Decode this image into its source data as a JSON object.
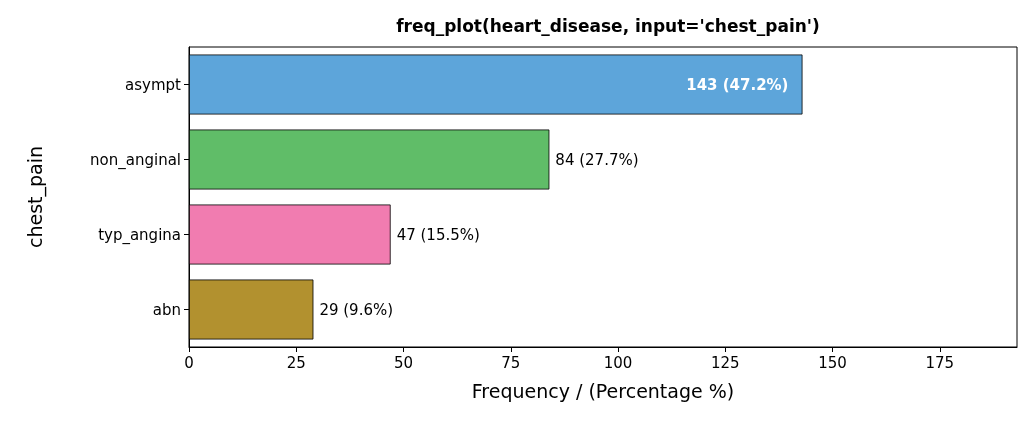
{
  "chart_data": {
    "type": "bar",
    "orientation": "horizontal",
    "title": "freq_plot(heart_disease, input='chest_pain')",
    "xlabel": "Frequency / (Percentage %)",
    "ylabel": "chest_pain",
    "categories": [
      "asympt",
      "non_anginal",
      "typ_angina",
      "abn"
    ],
    "values": [
      143,
      84,
      47,
      29
    ],
    "colors": [
      "#5da5da",
      "#60bd68",
      "#f17cb0",
      "#b2912f"
    ],
    "value_labels": [
      "143 (47.2%)",
      "84 (27.7%)",
      "47 (15.5%)",
      "29 (9.6%)"
    ],
    "xlim": [
      0,
      193
    ],
    "xticks": [
      0,
      25,
      50,
      75,
      100,
      125,
      150,
      175
    ],
    "grid": false
  }
}
